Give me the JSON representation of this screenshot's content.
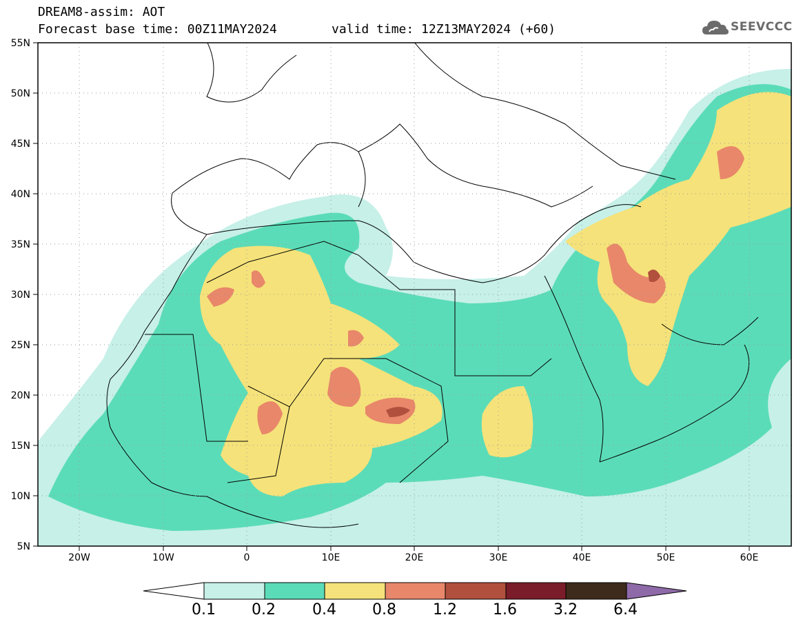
{
  "header": {
    "title": "DREAM8-assim: AOT",
    "base_time": "Forecast base time: 00Z11MAY2024",
    "valid_time": "valid time: 12Z13MAY2024 (+60)",
    "logo_text": "SEEVCCC"
  },
  "axes": {
    "x_ticks": [
      "20W",
      "10W",
      "0",
      "10E",
      "20E",
      "30E",
      "40E",
      "50E",
      "60E"
    ],
    "y_ticks": [
      "55N",
      "50N",
      "45N",
      "40N",
      "35N",
      "30N",
      "25N",
      "20N",
      "15N",
      "10N",
      "5N"
    ],
    "lon_range": [
      -25,
      65
    ],
    "lat_range": [
      5,
      55
    ]
  },
  "colorbar": {
    "labels": [
      "0.1",
      "0.2",
      "0.4",
      "0.8",
      "1.2",
      "1.6",
      "3.2",
      "6.4"
    ],
    "colors": [
      "#c6f0e8",
      "#5bdcb8",
      "#f5e27a",
      "#e8876a",
      "#b0503d",
      "#7a1c2a",
      "#3e2b1c",
      "#8e6aa8"
    ]
  },
  "chart_data": {
    "type": "heatmap",
    "title": "DREAM8-assim: AOT",
    "variable": "AOT",
    "levels": [
      0.1,
      0.2,
      0.4,
      0.8,
      1.2,
      1.6,
      3.2,
      6.4
    ],
    "xlim": [
      -25,
      65
    ],
    "ylim": [
      5,
      55
    ]
  }
}
